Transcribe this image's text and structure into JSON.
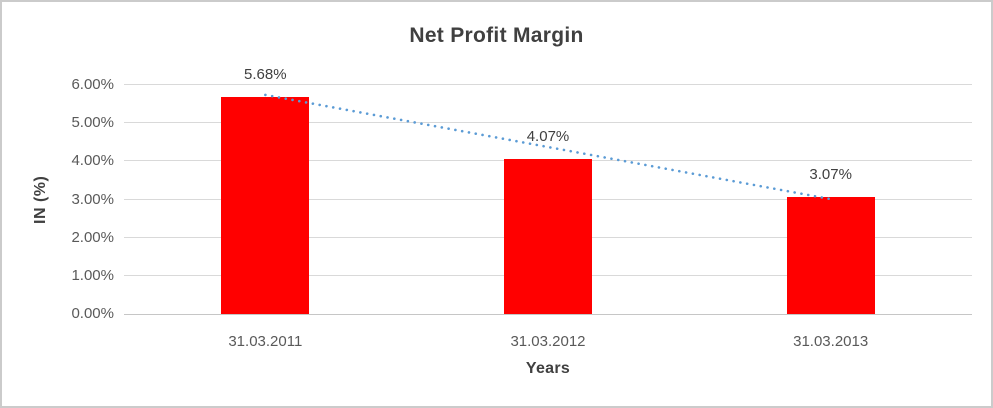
{
  "chart_data": {
    "type": "bar",
    "title": "Net Profit Margin",
    "xlabel": "Years",
    "ylabel": "IN (%)",
    "categories": [
      "31.03.2011",
      "31.03.2012",
      "31.03.2013"
    ],
    "values": [
      5.68,
      4.07,
      3.07
    ],
    "data_labels": [
      "5.68%",
      "4.07%",
      "3.07%"
    ],
    "ylim": [
      0,
      6
    ],
    "ytick_values": [
      0,
      1,
      2,
      3,
      4,
      5,
      6
    ],
    "ytick_labels": [
      "0.00%",
      "1.00%",
      "2.00%",
      "3.00%",
      "4.00%",
      "5.00%",
      "6.00%"
    ],
    "grid": "horizontal",
    "legend": "none",
    "bar_color": "#ff0000",
    "trendline": {
      "type": "linear",
      "style": "dotted",
      "color": "#5b9bd5",
      "start_value": 5.74,
      "end_value": 3.01
    }
  }
}
